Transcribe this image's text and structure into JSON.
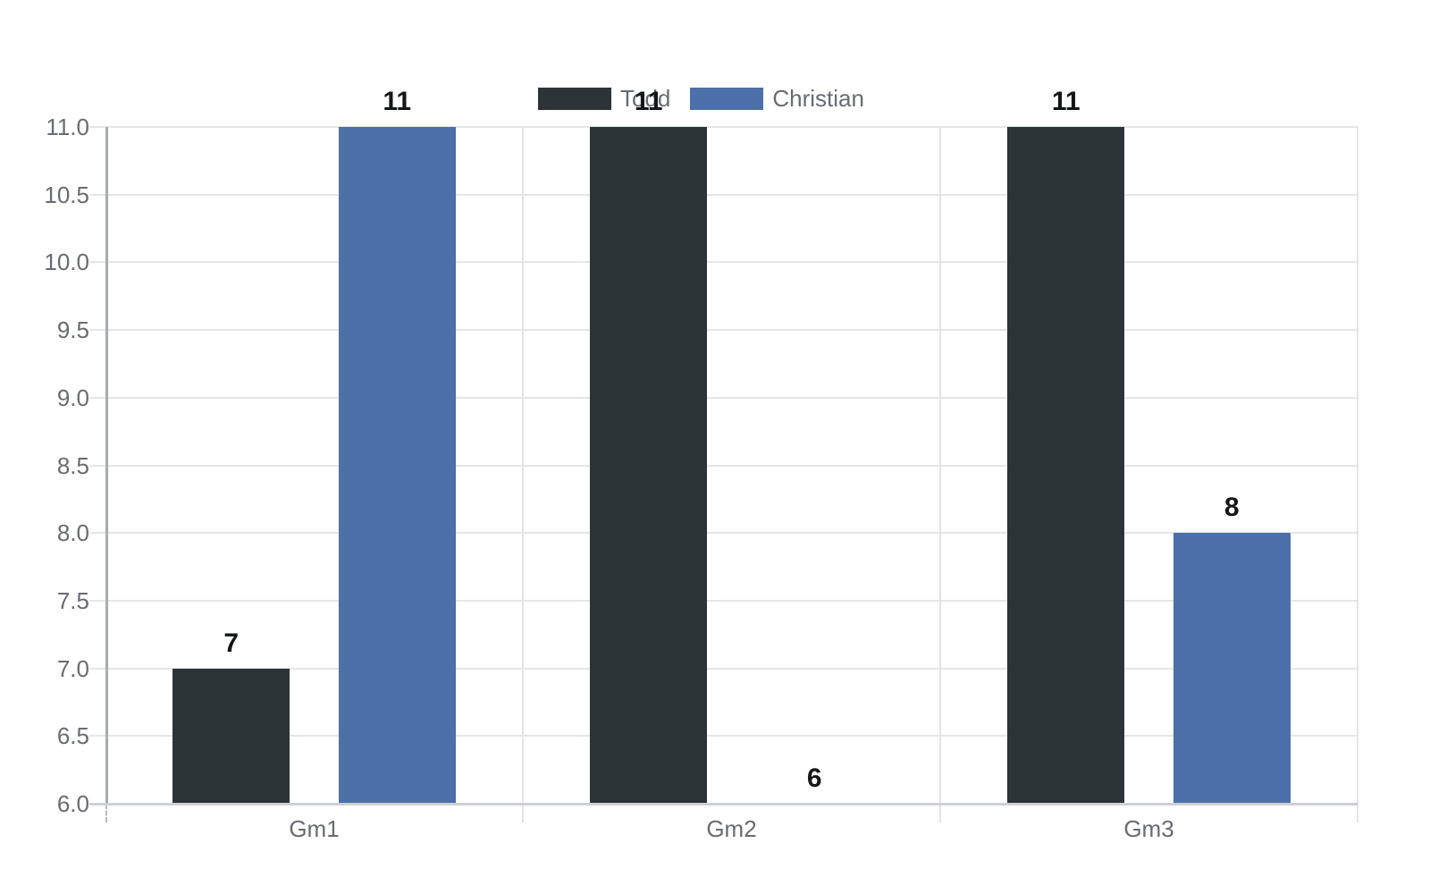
{
  "chart_data": {
    "type": "bar",
    "title": "",
    "categories": [
      "Gm1",
      "Gm2",
      "Gm3"
    ],
    "series": [
      {
        "name": "Todd",
        "color": "#2c3438",
        "values": [
          7,
          11,
          11
        ]
      },
      {
        "name": "Christian",
        "color": "#4c70a8",
        "values": [
          11,
          6,
          8
        ]
      }
    ],
    "data_labels_shown": true,
    "ylim": [
      6,
      11
    ],
    "ytick_step": 0.5,
    "yticks": [
      "6.0",
      "6.5",
      "7.0",
      "7.5",
      "8.0",
      "8.5",
      "9.0",
      "9.5",
      "10.0",
      "10.5",
      "11.0"
    ],
    "grid": true,
    "legend_position": "top-center",
    "colors": {
      "background": "#ffffff",
      "gridline": "#e6e6e6",
      "axis_baseline": "#ced0d5",
      "y_spine": "#a7abb3",
      "tick_text": "#686b70",
      "data_label_text": "#141618"
    }
  }
}
